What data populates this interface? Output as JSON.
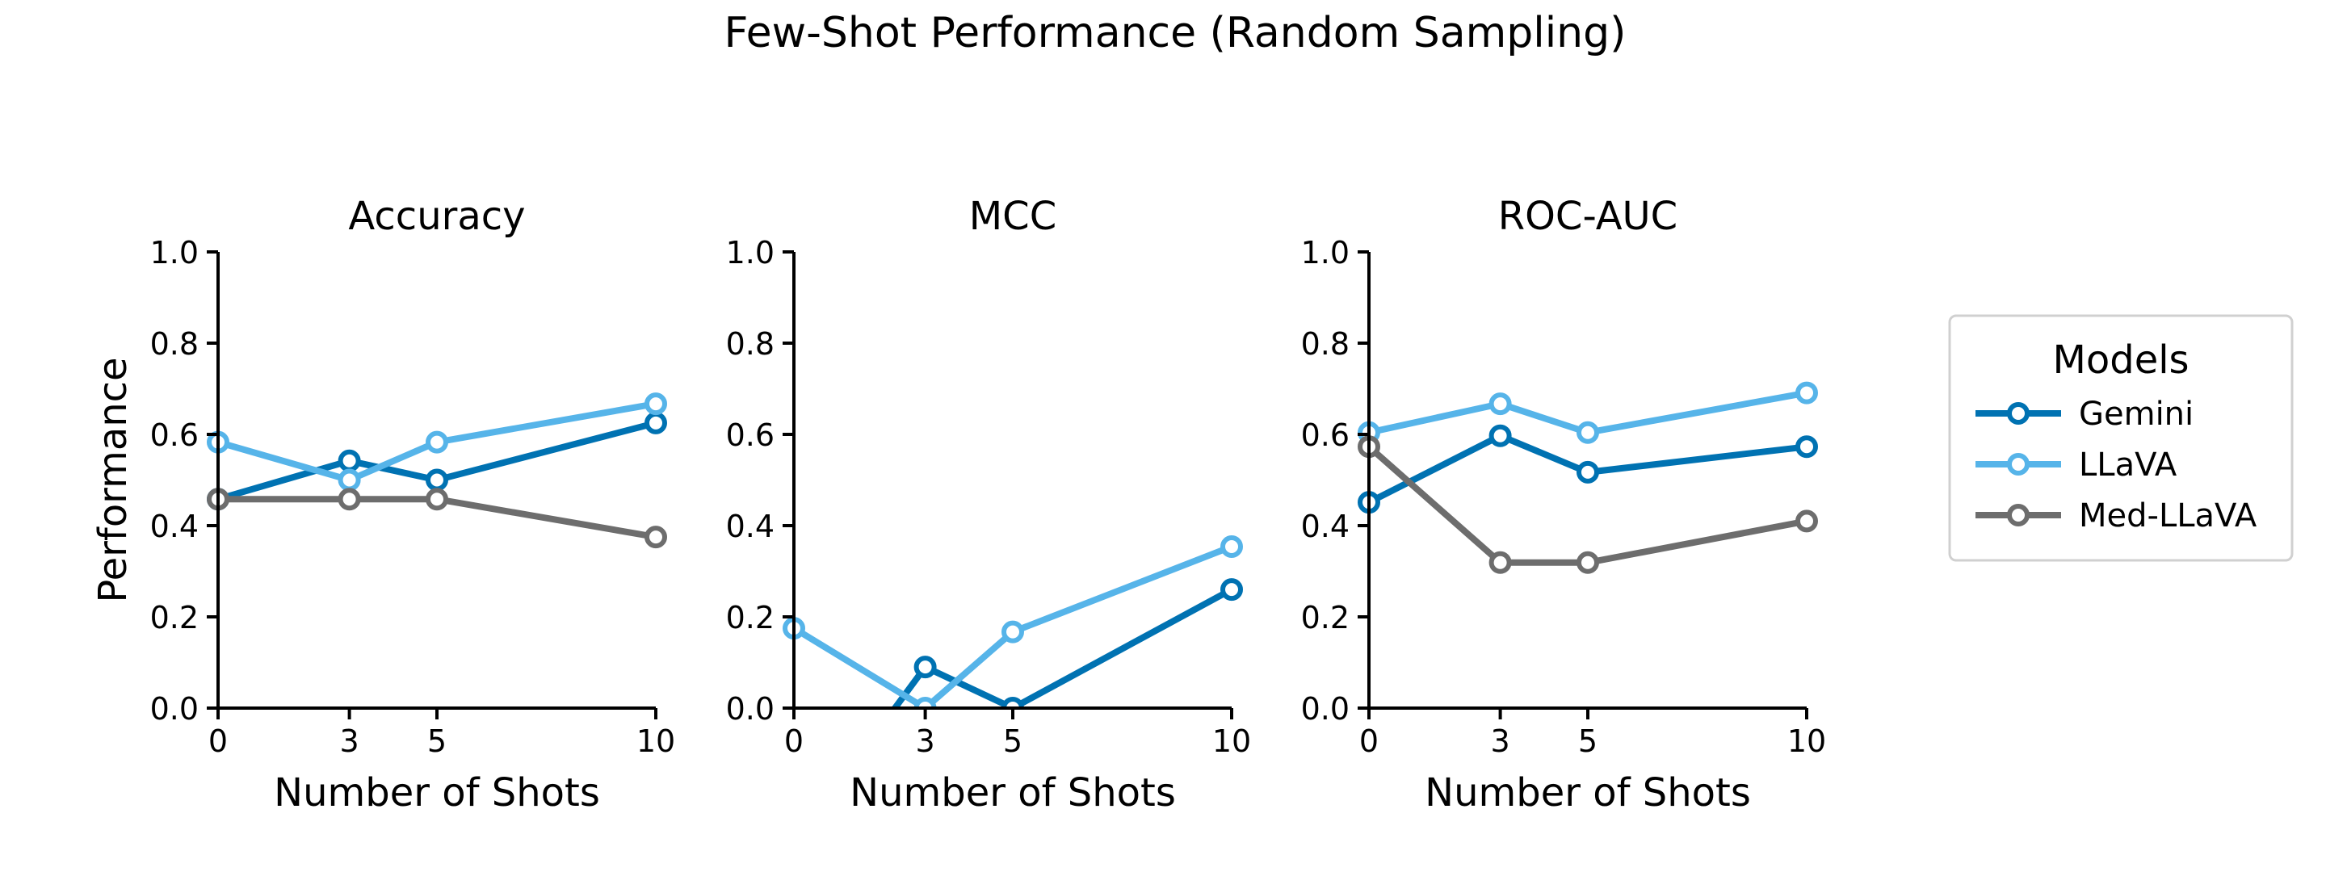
{
  "figure": {
    "title": "Few-Shot Performance (Random Sampling)"
  },
  "chart_data": [
    {
      "type": "line",
      "title": "Accuracy",
      "xlabel": "Number of Shots",
      "ylabel": "Performance",
      "x": [
        0,
        3,
        5,
        10
      ],
      "xlim": [
        0,
        10
      ],
      "ylim": [
        0,
        1.0
      ],
      "xticks": [
        "0",
        "3",
        "5",
        "10"
      ],
      "yticks": [
        "0.0",
        "0.2",
        "0.4",
        "0.6",
        "0.8",
        "1.0"
      ],
      "series": [
        {
          "name": "Gemini",
          "color": "#0072b2",
          "values": [
            0.458,
            0.542,
            0.5,
            0.625
          ]
        },
        {
          "name": "LLaVA",
          "color": "#56b4e9",
          "values": [
            0.583,
            0.5,
            0.583,
            0.667
          ]
        },
        {
          "name": "Med-LLaVA",
          "color": "#6d6d6d",
          "values": [
            0.458,
            0.458,
            0.458,
            0.375
          ]
        }
      ]
    },
    {
      "type": "line",
      "title": "MCC",
      "xlabel": "Number of Shots",
      "ylabel": "",
      "x": [
        0,
        3,
        5,
        10
      ],
      "xlim": [
        0,
        10
      ],
      "ylim": [
        0,
        1.0
      ],
      "xticks": [
        "0",
        "3",
        "5",
        "10"
      ],
      "yticks": [
        "0.0",
        "0.2",
        "0.4",
        "0.6",
        "0.8",
        "1.0"
      ],
      "series": [
        {
          "name": "Gemini",
          "color": "#0072b2",
          "values": [
            -0.3,
            0.09,
            0.0,
            0.26
          ]
        },
        {
          "name": "LLaVA",
          "color": "#56b4e9",
          "values": [
            0.175,
            0.0,
            0.167,
            0.354
          ]
        },
        {
          "name": "Med-LLaVA",
          "color": "#6d6d6d",
          "values": [
            null,
            null,
            null,
            null
          ]
        }
      ]
    },
    {
      "type": "line",
      "title": "ROC-AUC",
      "xlabel": "Number of Shots",
      "ylabel": "",
      "x": [
        0,
        3,
        5,
        10
      ],
      "xlim": [
        0,
        10
      ],
      "ylim": [
        0,
        1.0
      ],
      "xticks": [
        "0",
        "3",
        "5",
        "10"
      ],
      "yticks": [
        "0.0",
        "0.2",
        "0.4",
        "0.6",
        "0.8",
        "1.0"
      ],
      "series": [
        {
          "name": "Gemini",
          "color": "#0072b2",
          "values": [
            0.451,
            0.597,
            0.517,
            0.573
          ]
        },
        {
          "name": "LLaVA",
          "color": "#56b4e9",
          "values": [
            0.604,
            0.667,
            0.604,
            0.691
          ]
        },
        {
          "name": "Med-LLaVA",
          "color": "#6d6d6d",
          "values": [
            0.573,
            0.319,
            0.319,
            0.41
          ]
        }
      ]
    }
  ],
  "legend": {
    "title": "Models",
    "placement": "right",
    "entries": [
      {
        "name": "Gemini",
        "color": "#0072b2"
      },
      {
        "name": "LLaVA",
        "color": "#56b4e9"
      },
      {
        "name": "Med-LLaVA",
        "color": "#6d6d6d"
      }
    ]
  }
}
